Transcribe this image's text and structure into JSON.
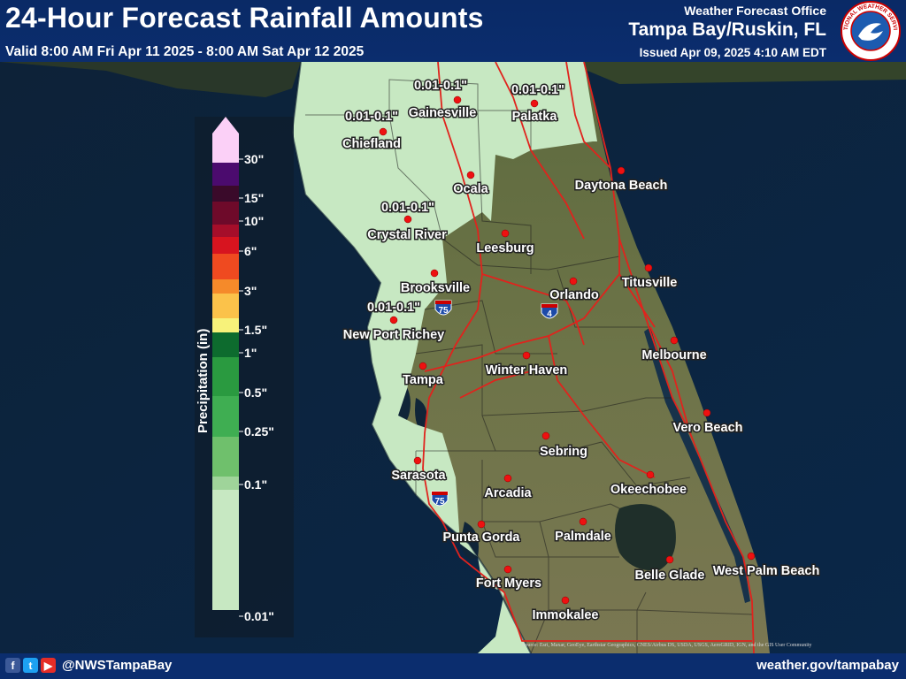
{
  "header": {
    "title": "24-Hour Forecast Rainfall Amounts",
    "valid": "Valid 8:00 AM Fri Apr 11 2025 - 8:00 AM Sat Apr 12 2025",
    "office_line": "Weather Forecast Office",
    "office_name": "Tampa Bay/Ruskin, FL",
    "issued": "Issued Apr 09, 2025 4:10 AM EDT",
    "logo": "noaa-nws-seal",
    "logo_text": "NATIONAL WEATHER SERVICE"
  },
  "legend": {
    "title": "Precipitation (in)",
    "labels": [
      "30\"",
      "15\"",
      "10\"",
      "6\"",
      "3\"",
      "1.5\"",
      "1\"",
      "0.5\"",
      "0.25\"",
      "0.1\"",
      "0.01\""
    ],
    "colors": [
      "#fbd0f7",
      "#4b0b6e",
      "#3a0a2a",
      "#6e0a2a",
      "#a50e2a",
      "#d7141f",
      "#ef4a20",
      "#f58a2a",
      "#fbc24a",
      "#f7f27a",
      "#0d6b2e",
      "#2a9a40",
      "#3fae52",
      "#6fc06c",
      "#9fd49a",
      "#c7e8c2"
    ]
  },
  "map": {
    "base": "satellite imagery of west-central Florida",
    "cities": [
      {
        "name": "Gainesville"
      },
      {
        "name": "Palatka"
      },
      {
        "name": "Chiefland"
      },
      {
        "name": "Ocala"
      },
      {
        "name": "Daytona Beach"
      },
      {
        "name": "Crystal River"
      },
      {
        "name": "Leesburg"
      },
      {
        "name": "Titusville"
      },
      {
        "name": "Brooksville"
      },
      {
        "name": "Orlando"
      },
      {
        "name": "New Port Richey"
      },
      {
        "name": "Melbourne"
      },
      {
        "name": "Tampa"
      },
      {
        "name": "Winter Haven"
      },
      {
        "name": "Vero Beach"
      },
      {
        "name": "Sebring"
      },
      {
        "name": "Sarasota"
      },
      {
        "name": "Arcadia"
      },
      {
        "name": "Okeechobee"
      },
      {
        "name": "Palmdale"
      },
      {
        "name": "Punta Gorda"
      },
      {
        "name": "Fort Myers"
      },
      {
        "name": "Belle Glade"
      },
      {
        "name": "West Palm Beach"
      },
      {
        "name": "Immokalee"
      }
    ],
    "amounts": [
      "0.01-0.1\"",
      "0.01-0.1\"",
      "0.01-0.1\"",
      "0.01-0.1\"",
      "0.01-0.1\""
    ],
    "interstates": [
      "75",
      "4",
      "75"
    ],
    "attribution": "Source: Esri, Maxar, GeoEye, Earthstar Geographics, CNES/Airbus DS, USDA, USGS, AeroGRID, IGN, and the GIS User Community"
  },
  "footer": {
    "handle": "@NWSTampaBay",
    "website": "weather.gov/tampabay",
    "icons": [
      "facebook-icon",
      "twitter-icon",
      "youtube-icon"
    ],
    "icon_glyphs": [
      "f",
      "t",
      "▶"
    ]
  }
}
